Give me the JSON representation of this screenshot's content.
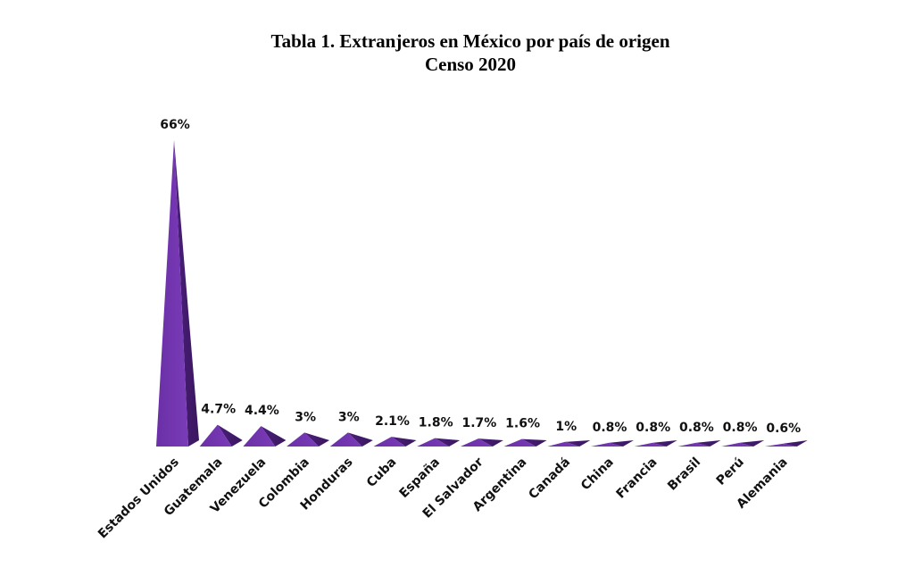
{
  "chart_data": {
    "type": "bar",
    "title": "Tabla 1. Extranjeros en México por país de origen",
    "subtitle": "Censo 2020",
    "categories": [
      "Estados Unidos",
      "Guatemala",
      "Venezuela",
      "Colombia",
      "Honduras",
      "Cuba",
      "España",
      "El Salvador",
      "Argentina",
      "Canadá",
      "China",
      "Francia",
      "Brasil",
      "Perú",
      "Alemania"
    ],
    "values": [
      66,
      4.7,
      4.4,
      3,
      3,
      2.1,
      1.8,
      1.7,
      1.6,
      1,
      0.8,
      0.8,
      0.8,
      0.8,
      0.6
    ],
    "data_labels": [
      "66%",
      "4.7%",
      "4.4%",
      "3%",
      "3%",
      "2.1%",
      "1.8%",
      "1.7%",
      "1.6%",
      "1%",
      "0.8%",
      "0.8%",
      "0.8%",
      "0.8%",
      "0.6%"
    ],
    "unit": "%",
    "shape": "pyramid",
    "bar_color": "#7030a0",
    "xlabel": "",
    "ylabel": "",
    "grid": false,
    "legend": "none"
  }
}
